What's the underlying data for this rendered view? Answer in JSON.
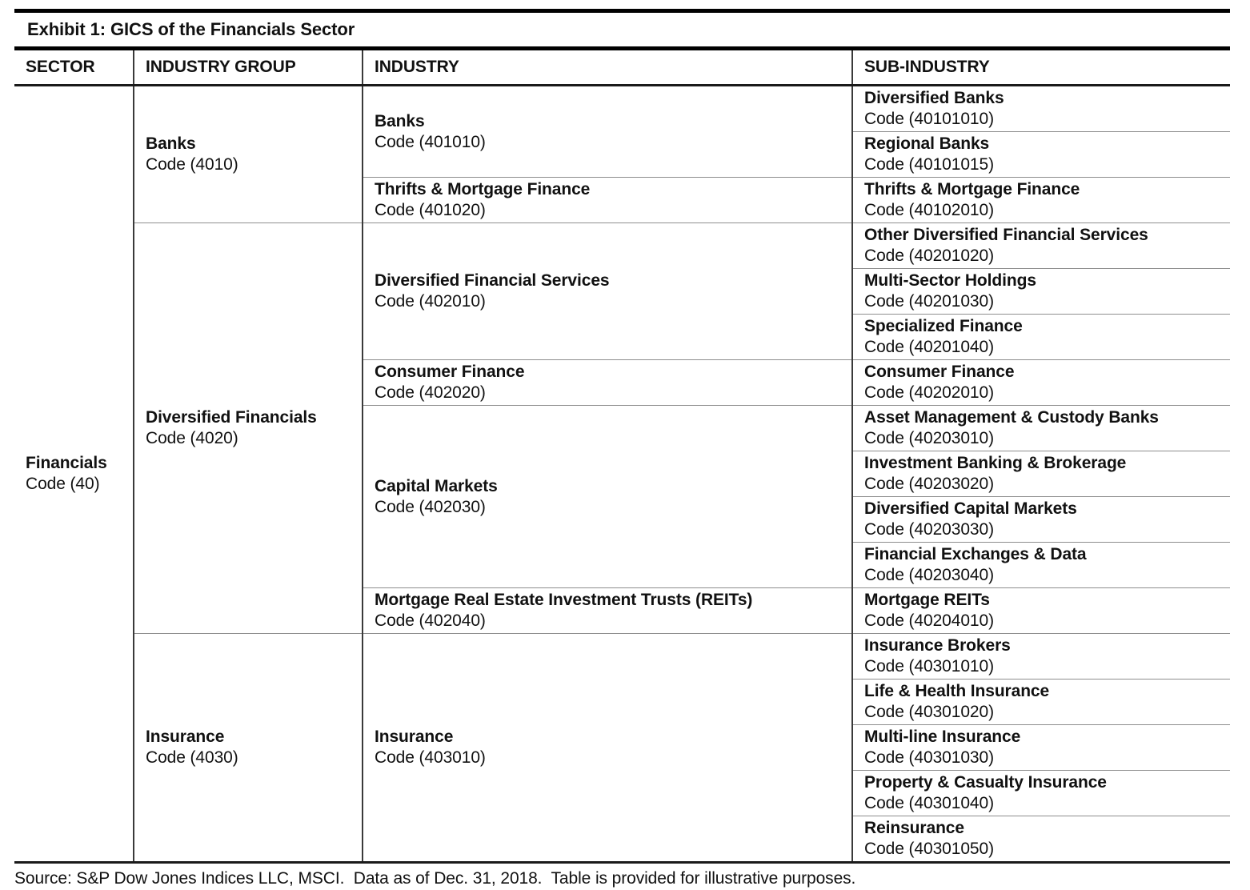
{
  "title": "Exhibit 1: GICS of the Financials Sector",
  "columns": [
    "SECTOR",
    "INDUSTRY GROUP",
    "INDUSTRY",
    "SUB-INDUSTRY"
  ],
  "hierarchy": {
    "sector": {
      "name": "Financials",
      "code": "Code (40)"
    },
    "industry_groups": [
      {
        "name": "Banks",
        "code": "Code (4010)",
        "industries": [
          {
            "name": "Banks",
            "code": "Code (401010)",
            "sub_industries": [
              {
                "name": "Diversified Banks",
                "code": "Code (40101010)"
              },
              {
                "name": "Regional Banks",
                "code": "Code (40101015)"
              }
            ]
          },
          {
            "name": "Thrifts & Mortgage Finance",
            "code": "Code (401020)",
            "sub_industries": [
              {
                "name": "Thrifts & Mortgage Finance",
                "code": "Code (40102010)"
              }
            ]
          }
        ]
      },
      {
        "name": "Diversified Financials",
        "code": "Code (4020)",
        "industries": [
          {
            "name": "Diversified Financial Services",
            "code": "Code (402010)",
            "sub_industries": [
              {
                "name": "Other Diversified Financial Services",
                "code": "Code (40201020)"
              },
              {
                "name": "Multi-Sector Holdings",
                "code": "Code (40201030)"
              },
              {
                "name": "Specialized Finance",
                "code": "Code (40201040)"
              }
            ]
          },
          {
            "name": "Consumer Finance",
            "code": "Code (402020)",
            "sub_industries": [
              {
                "name": "Consumer Finance",
                "code": "Code (40202010)"
              }
            ]
          },
          {
            "name": "Capital Markets",
            "code": "Code (402030)",
            "sub_industries": [
              {
                "name": "Asset Management & Custody Banks",
                "code": "Code (40203010)"
              },
              {
                "name": "Investment Banking & Brokerage",
                "code": "Code (40203020)"
              },
              {
                "name": "Diversified Capital Markets",
                "code": "Code (40203030)"
              },
              {
                "name": "Financial Exchanges & Data",
                "code": "Code (40203040)"
              }
            ]
          },
          {
            "name": "Mortgage Real Estate Investment Trusts (REITs)",
            "code": "Code (402040)",
            "sub_industries": [
              {
                "name": "Mortgage REITs",
                "code": "Code (40204010)"
              }
            ]
          }
        ]
      },
      {
        "name": "Insurance",
        "code": "Code (4030)",
        "industries": [
          {
            "name": "Insurance",
            "code": "Code (403010)",
            "sub_industries": [
              {
                "name": "Insurance Brokers",
                "code": "Code (40301010)"
              },
              {
                "name": "Life & Health Insurance",
                "code": "Code (40301020)"
              },
              {
                "name": "Multi-line Insurance",
                "code": "Code (40301030)"
              },
              {
                "name": "Property & Casualty Insurance",
                "code": "Code (40301040)"
              },
              {
                "name": "Reinsurance",
                "code": "Code (40301050)"
              }
            ]
          }
        ]
      }
    ]
  },
  "footer": "Source: S&P Dow Jones Indices LLC, MSCI.  Data as of Dec. 31, 2018.  Table is provided for illustrative purposes.",
  "colors": {
    "background": "#ffffff",
    "text": "#111111",
    "thick_rule": "#000000",
    "column_divider": "#3a3a3a",
    "row_divider": "#8e8e8e"
  }
}
